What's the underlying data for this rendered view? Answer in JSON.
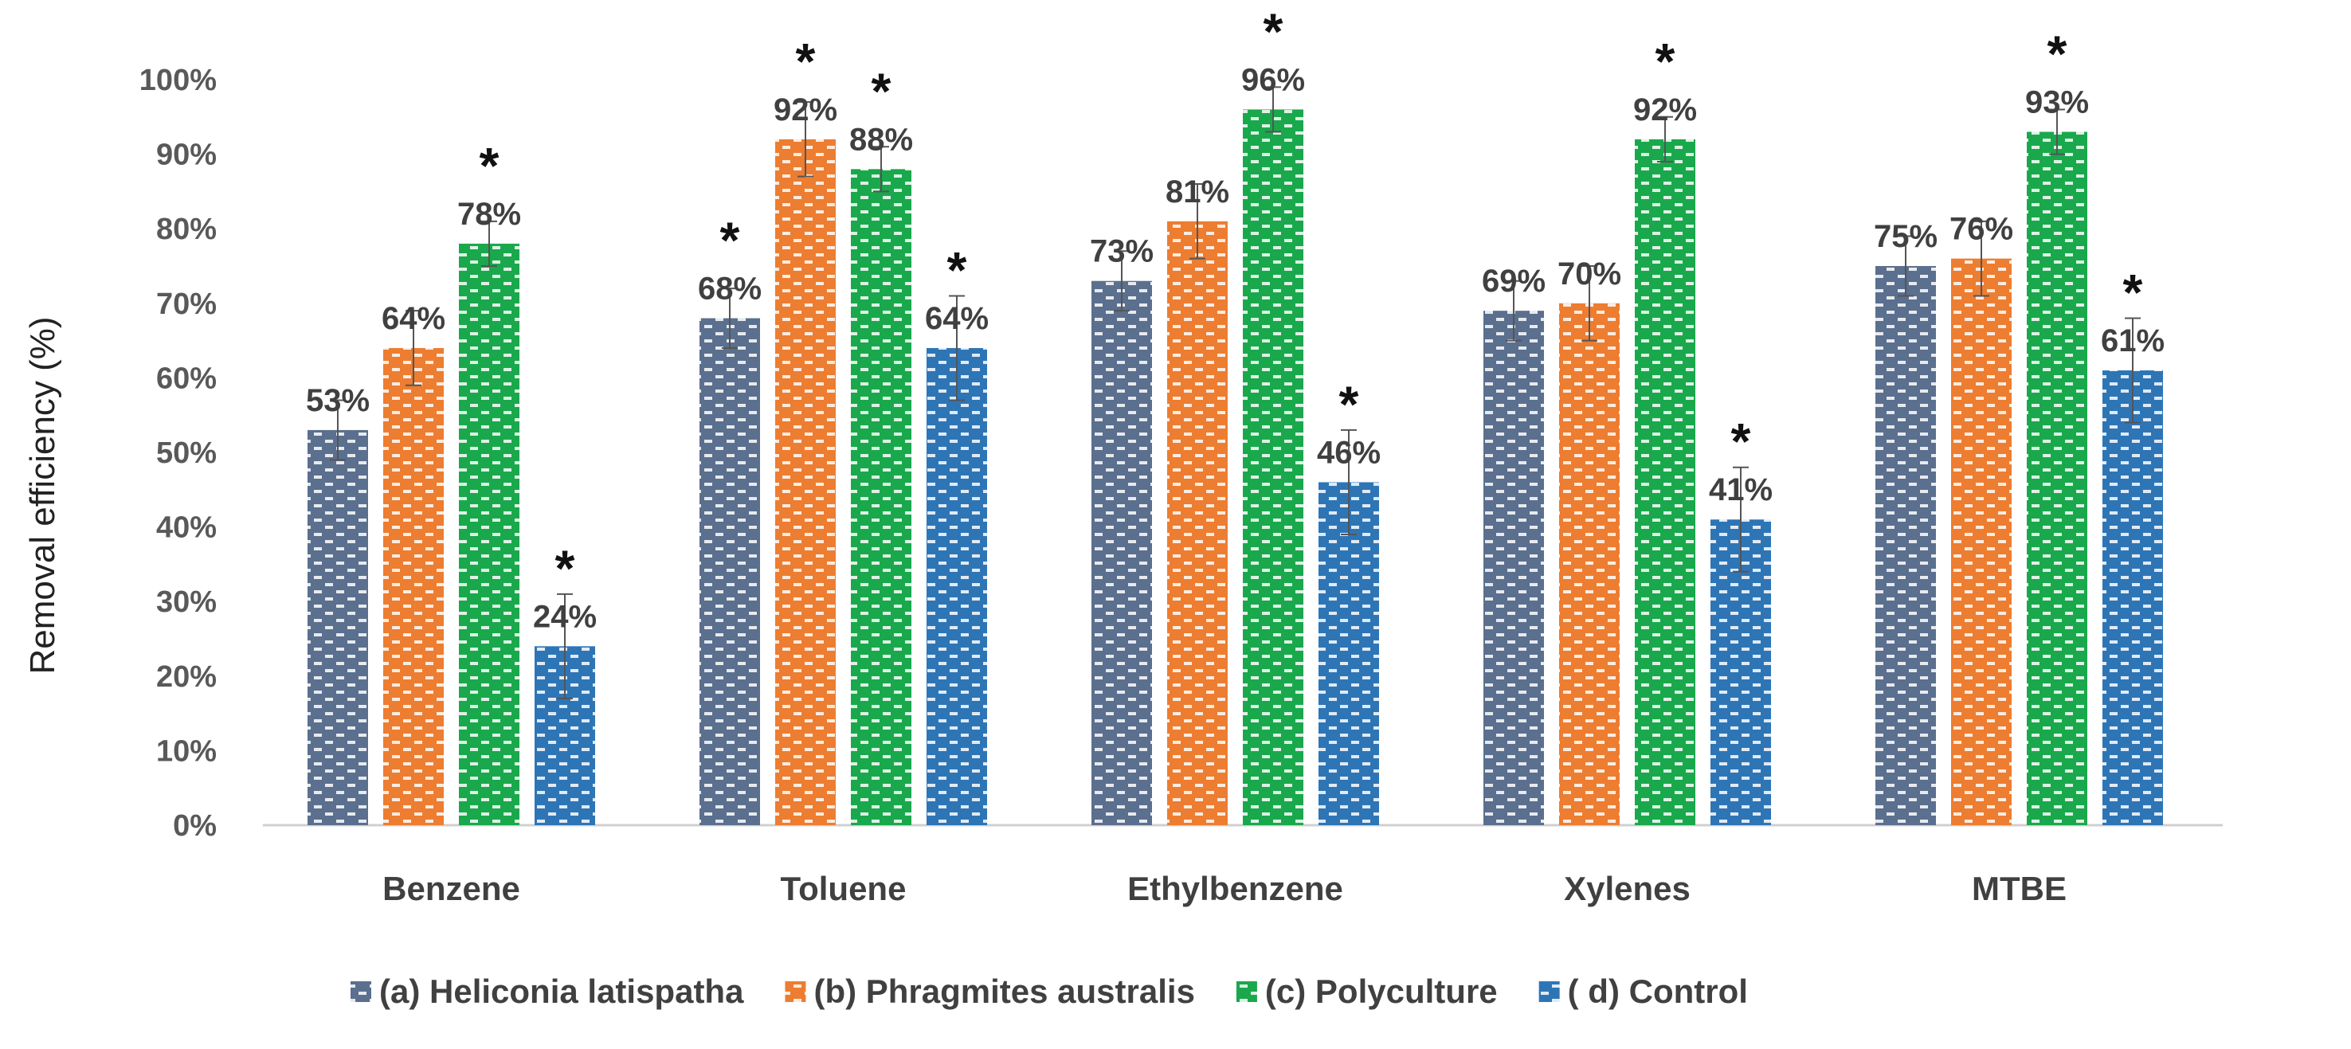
{
  "chart_data": {
    "type": "bar",
    "title": "",
    "xlabel": "",
    "ylabel": "Removal efficiency (%)",
    "ylim": [
      0,
      100
    ],
    "yticks": [
      0,
      10,
      20,
      30,
      40,
      50,
      60,
      70,
      80,
      90,
      100
    ],
    "ytick_labels": [
      "0%",
      "10%",
      "20%",
      "30%",
      "40%",
      "50%",
      "60%",
      "70%",
      "80%",
      "90%",
      "100%"
    ],
    "grid": false,
    "legend_position": "bottom",
    "categories": [
      "Benzene",
      "Toluene",
      "Ethylbenzene",
      "Xylenes",
      "MTBE"
    ],
    "series": [
      {
        "name": "(a) Heliconia latispatha",
        "color": "#5b6f8e",
        "values": [
          53,
          68,
          73,
          69,
          75
        ],
        "labels": [
          "53%",
          "68%",
          "73%",
          "69%",
          "75%"
        ],
        "errors": [
          4,
          4,
          4,
          4,
          4
        ],
        "significant": [
          false,
          true,
          false,
          false,
          false
        ]
      },
      {
        "name": "(b) Phragmites australis",
        "color": "#ed7d31",
        "values": [
          64,
          92,
          81,
          70,
          76
        ],
        "labels": [
          "64%",
          "92%",
          "81%",
          "70%",
          "76%"
        ],
        "errors": [
          5,
          5,
          5,
          5,
          5
        ],
        "significant": [
          false,
          true,
          false,
          false,
          false
        ]
      },
      {
        "name": "(c) Polyculture",
        "color": "#1aa84c",
        "values": [
          78,
          88,
          96,
          92,
          93
        ],
        "labels": [
          "78%",
          "88%",
          "96%",
          "92%",
          "93%"
        ],
        "errors": [
          3,
          3,
          3,
          3,
          3
        ],
        "significant": [
          true,
          true,
          true,
          true,
          true
        ]
      },
      {
        "name": "( d) Control",
        "color": "#2e75b6",
        "values": [
          24,
          64,
          46,
          41,
          61
        ],
        "labels": [
          "24%",
          "64%",
          "46%",
          "41%",
          "61%"
        ],
        "errors": [
          7,
          7,
          7,
          7,
          7
        ],
        "significant": [
          true,
          true,
          true,
          true,
          true
        ]
      }
    ],
    "significance_marker": "*"
  }
}
